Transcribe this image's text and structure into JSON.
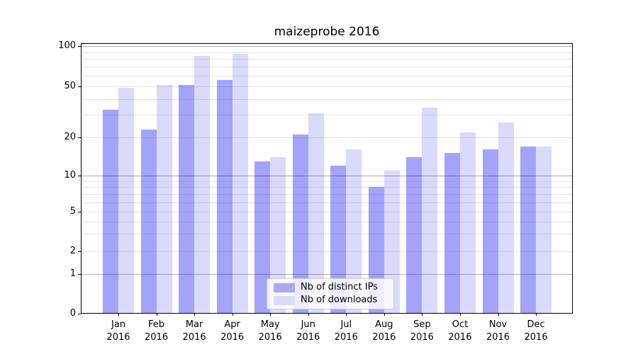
{
  "title": "maizeprobe 2016",
  "legend": {
    "items": [
      {
        "label": "Nb of distinct IPs",
        "swatch_color": "#a7a7f8"
      },
      {
        "label": "Nb of downloads",
        "swatch_color": "#dcdcfa"
      }
    ]
  },
  "y_axis": {
    "tick_labels": [
      "0",
      "1",
      "2",
      "5",
      "10",
      "20",
      "50",
      "100"
    ]
  },
  "x_axis": {
    "year": "2016"
  },
  "chart_data": {
    "type": "bar",
    "title": "maizeprobe 2016",
    "categories": [
      "Jan",
      "Feb",
      "Mar",
      "Apr",
      "May",
      "Jun",
      "Jul",
      "Aug",
      "Sep",
      "Oct",
      "Nov",
      "Dec"
    ],
    "year_label": "2016",
    "series": [
      {
        "name": "Nb of distinct IPs",
        "values": [
          33,
          23,
          51,
          56,
          13,
          21,
          12,
          8,
          14,
          15,
          16,
          17
        ],
        "legend_color": "#a7a7f8",
        "bar_color": "rgba(0,0,238,0.36)"
      },
      {
        "name": "Nb of downloads",
        "values": [
          49,
          51,
          84,
          87,
          14,
          31,
          16,
          11,
          34,
          22,
          26,
          17
        ],
        "legend_color": "#dcdcfa",
        "bar_color": "rgba(0,0,238,0.145)"
      }
    ],
    "y_ticks": [
      0,
      1,
      2,
      5,
      10,
      20,
      50,
      100
    ],
    "ylim": [
      0,
      105
    ],
    "yscale": "symlog",
    "grid": "horizontal; darker lines at 1, 10, 100; faint lines at 2-9, 20-90",
    "legend_position": "lower center, inside plot",
    "colors": {
      "major_grid": "#b0b0b0",
      "minor_grid": "#e6e6e6",
      "spine": "#000000"
    }
  }
}
